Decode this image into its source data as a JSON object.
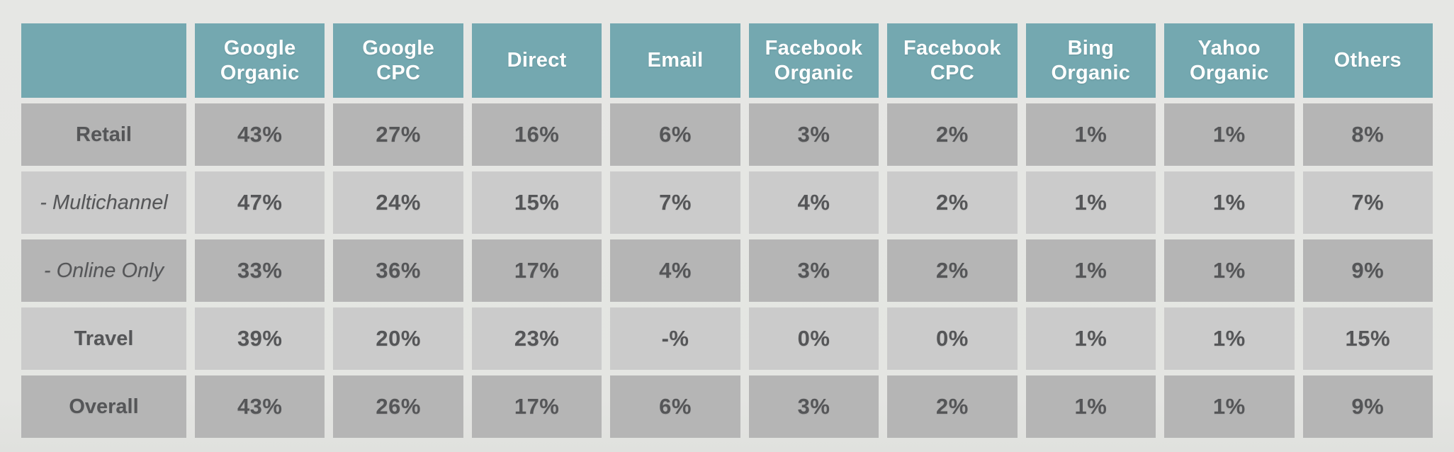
{
  "colors": {
    "background": "#e4e5e2",
    "header_bg": "#74a8b0",
    "header_text": "#ffffff",
    "row_dark": "#b5b5b5",
    "row_light": "#cbcbcb",
    "cell_text": "#555658"
  },
  "chart_data": {
    "type": "table",
    "title": "",
    "columns": [
      "",
      "Google Organic",
      "Google CPC",
      "Direct",
      "Email",
      "Facebook Organic",
      "Facebook CPC",
      "Bing Organic",
      "Yahoo Organic",
      "Others"
    ],
    "rows": [
      {
        "label": "Retail",
        "variant": "primary",
        "values": [
          "43%",
          "27%",
          "16%",
          "6%",
          "3%",
          "2%",
          "1%",
          "1%",
          "8%"
        ]
      },
      {
        "label": "- Multichannel",
        "variant": "sub",
        "values": [
          "47%",
          "24%",
          "15%",
          "7%",
          "4%",
          "2%",
          "1%",
          "1%",
          "7%"
        ]
      },
      {
        "label": "- Online Only",
        "variant": "sub",
        "values": [
          "33%",
          "36%",
          "17%",
          "4%",
          "3%",
          "2%",
          "1%",
          "1%",
          "9%"
        ]
      },
      {
        "label": "Travel",
        "variant": "primary",
        "values": [
          "39%",
          "20%",
          "23%",
          "-%",
          "0%",
          "0%",
          "1%",
          "1%",
          "15%"
        ]
      },
      {
        "label": "Overall",
        "variant": "primary",
        "values": [
          "43%",
          "26%",
          "17%",
          "6%",
          "3%",
          "2%",
          "1%",
          "1%",
          "9%"
        ]
      }
    ]
  }
}
